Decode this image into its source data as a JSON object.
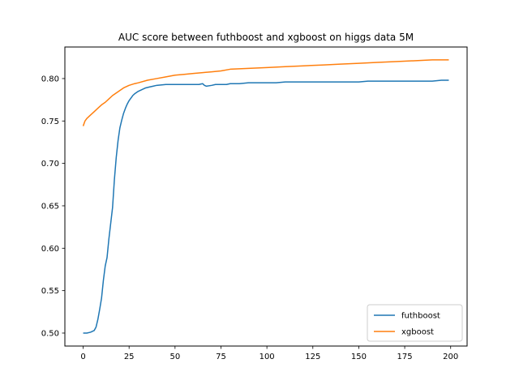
{
  "chart_data": {
    "type": "line",
    "title": "AUC score between futhboost and xgboost on higgs data 5M",
    "xlabel": "",
    "ylabel": "",
    "xlim": [
      -9.95,
      208.95
    ],
    "ylim": [
      0.4847,
      0.8372
    ],
    "xticks": [
      0,
      25,
      50,
      75,
      100,
      125,
      150,
      175,
      200
    ],
    "yticks": [
      0.5,
      0.55,
      0.6,
      0.65,
      0.7,
      0.75,
      0.8
    ],
    "ytick_labels": [
      "0.50",
      "0.55",
      "0.60",
      "0.65",
      "0.70",
      "0.75",
      "0.80"
    ],
    "grid": false,
    "legend_position": "lower-right",
    "series": [
      {
        "name": "futhboost",
        "color": "#1f77b4",
        "x": [
          0,
          2,
          4,
          6,
          7,
          8,
          9,
          10,
          11,
          12,
          13,
          14,
          16,
          17,
          18,
          19,
          20,
          21,
          22,
          23,
          24,
          25,
          26,
          27,
          28,
          30,
          32,
          34,
          36,
          38,
          40,
          45,
          50,
          55,
          60,
          63,
          65,
          66,
          67,
          70,
          72,
          75,
          78,
          80,
          85,
          90,
          95,
          100,
          105,
          110,
          115,
          120,
          125,
          130,
          135,
          140,
          145,
          150,
          155,
          160,
          165,
          170,
          175,
          180,
          185,
          190,
          195,
          199
        ],
        "y": [
          0.5,
          0.5,
          0.501,
          0.503,
          0.507,
          0.516,
          0.528,
          0.541,
          0.562,
          0.579,
          0.589,
          0.611,
          0.648,
          0.681,
          0.707,
          0.727,
          0.742,
          0.751,
          0.759,
          0.765,
          0.77,
          0.774,
          0.777,
          0.78,
          0.782,
          0.785,
          0.787,
          0.789,
          0.79,
          0.791,
          0.792,
          0.793,
          0.793,
          0.793,
          0.793,
          0.793,
          0.794,
          0.792,
          0.791,
          0.792,
          0.793,
          0.793,
          0.793,
          0.794,
          0.794,
          0.795,
          0.795,
          0.795,
          0.795,
          0.796,
          0.796,
          0.796,
          0.796,
          0.796,
          0.796,
          0.796,
          0.796,
          0.796,
          0.797,
          0.797,
          0.797,
          0.797,
          0.797,
          0.797,
          0.797,
          0.797,
          0.798,
          0.798
        ]
      },
      {
        "name": "xgboost",
        "color": "#ff7f0e",
        "x": [
          0,
          1,
          2,
          4,
          6,
          8,
          10,
          12,
          14,
          16,
          18,
          20,
          22,
          25,
          28,
          30,
          35,
          40,
          45,
          50,
          55,
          60,
          65,
          70,
          75,
          80,
          90,
          100,
          110,
          120,
          130,
          140,
          150,
          160,
          170,
          180,
          190,
          199
        ],
        "y": [
          0.744,
          0.75,
          0.753,
          0.757,
          0.761,
          0.765,
          0.769,
          0.772,
          0.776,
          0.78,
          0.783,
          0.786,
          0.789,
          0.792,
          0.794,
          0.795,
          0.798,
          0.8,
          0.802,
          0.804,
          0.805,
          0.806,
          0.807,
          0.808,
          0.809,
          0.811,
          0.812,
          0.813,
          0.814,
          0.815,
          0.816,
          0.817,
          0.818,
          0.819,
          0.82,
          0.821,
          0.822,
          0.822
        ]
      }
    ]
  }
}
